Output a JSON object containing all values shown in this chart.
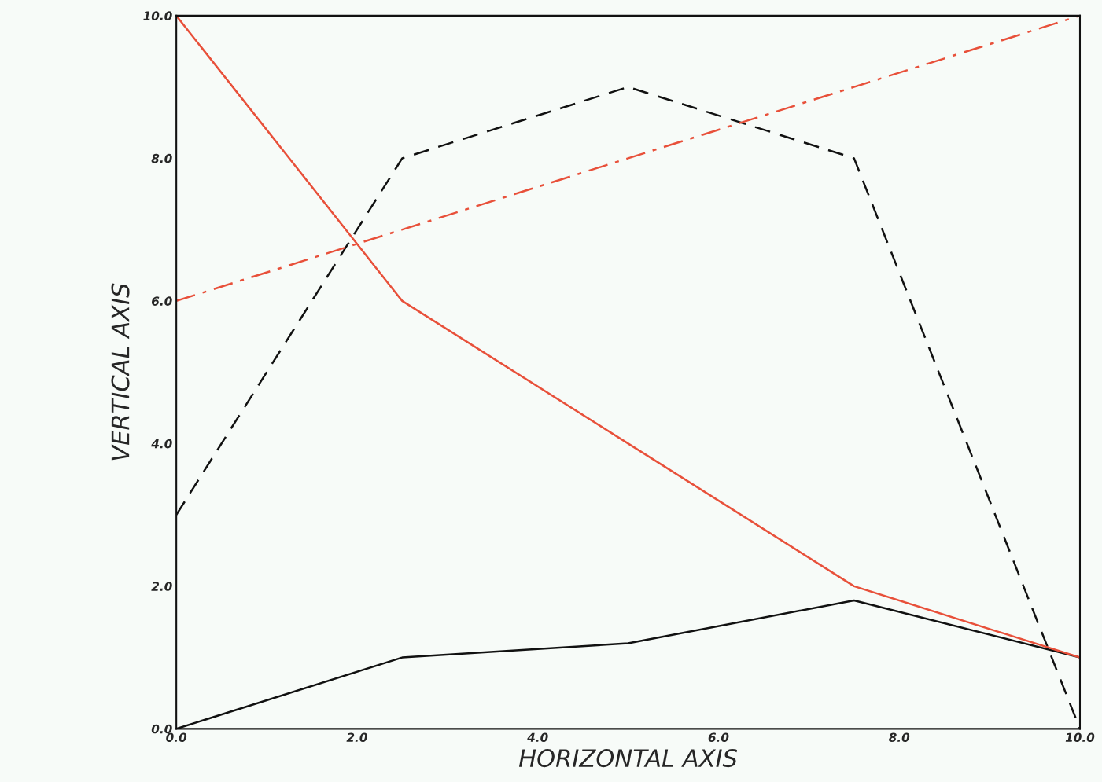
{
  "chart_data": {
    "type": "line",
    "xlabel": "HORIZONTAL AXIS",
    "ylabel": "VERTICAL AXIS",
    "x": [
      0,
      2.5,
      5,
      7.5,
      10
    ],
    "series": [
      {
        "color": "#111111",
        "values": [
          0,
          1.0,
          1.2,
          1.8,
          1.0
        ],
        "line_style": "solid"
      },
      {
        "color": "#111111",
        "values": [
          3,
          8,
          9,
          8,
          0
        ],
        "line_style": "dashed"
      },
      {
        "color": "#e8503a",
        "values": [
          10,
          6,
          4,
          2,
          1
        ],
        "line_style": "solid"
      },
      {
        "color": "#e8503a",
        "values": [
          6,
          7,
          8,
          9,
          10
        ],
        "line_style": "dashdot"
      }
    ],
    "xlim": [
      0,
      10
    ],
    "ylim": [
      0,
      10
    ],
    "xticks": [
      {
        "value": 0,
        "label": "0.0"
      },
      {
        "value": 2,
        "label": "2.0"
      },
      {
        "value": 4,
        "label": "4.0"
      },
      {
        "value": 6,
        "label": "6.0"
      },
      {
        "value": 8,
        "label": "8.0"
      },
      {
        "value": 10,
        "label": "10.0"
      }
    ],
    "yticks": [
      {
        "value": 0,
        "label": "0.0"
      },
      {
        "value": 2,
        "label": "2.0"
      },
      {
        "value": 4,
        "label": "4.0"
      },
      {
        "value": 6,
        "label": "6.0"
      },
      {
        "value": 8,
        "label": "8.0"
      },
      {
        "value": 10,
        "label": "10.0"
      }
    ],
    "grid": false,
    "marker": "none"
  }
}
